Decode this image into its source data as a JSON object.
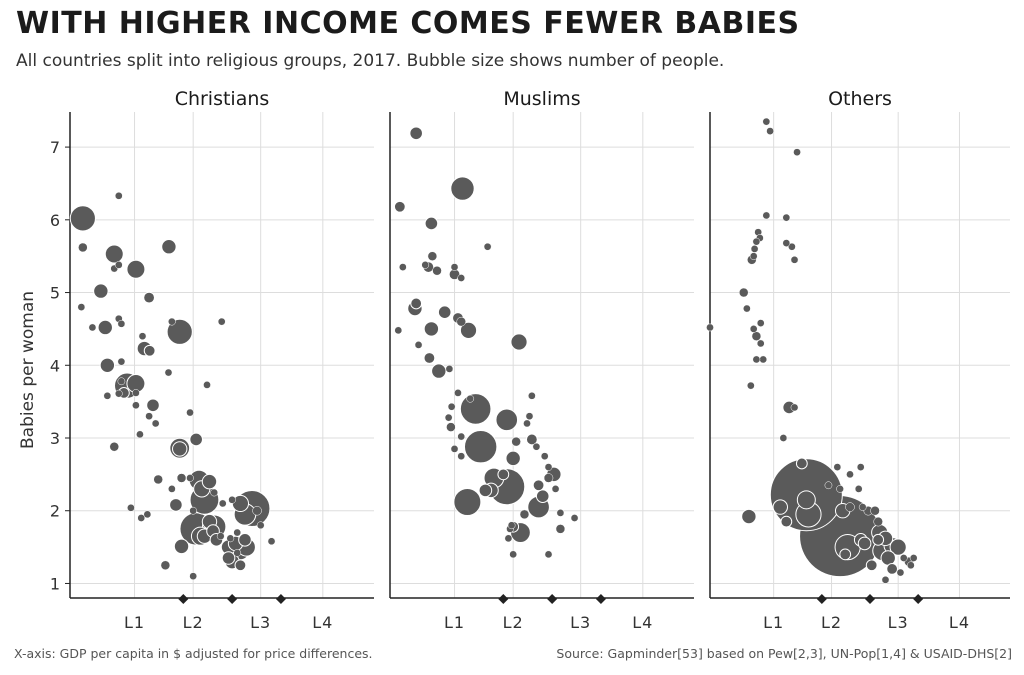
{
  "title": "WITH HIGHER INCOME COMES FEWER BABIES",
  "subtitle": "All countries split into religious groups, 2017. Bubble size shows number of people.",
  "footer_left": "X-axis: GDP per capita in $ adjusted for price differences.",
  "footer_right": "Source: Gapminder[53] based on Pew[2,3], UN-Pop[1,4] & USAID-DHS[2]",
  "colors": {
    "bubble": "#5a5a5a",
    "bubble_edge": "#ffffff",
    "grid": "#dddddd",
    "axis": "#222222",
    "marker": "#222222"
  },
  "chart_data": {
    "type": "scatter",
    "ylabel": "Babies per woman",
    "ylim": [
      0.8,
      7.4
    ],
    "yticks": [
      1,
      2,
      3,
      4,
      5,
      6,
      7
    ],
    "x_scale": "log",
    "x_domain": [
      0.4,
      30
    ],
    "level_labels": [
      "L1",
      "L2",
      "L3",
      "L4"
    ],
    "level_label_x": [
      1.0,
      2.3,
      6.0,
      14.5
    ],
    "level_boundaries": [
      2.0,
      4.0,
      8.0
    ],
    "grid": true,
    "panels": [
      {
        "name": "Christians",
        "points": [
          [
            0.48,
            6.02,
            14
          ],
          [
            0.48,
            5.62,
            5
          ],
          [
            0.47,
            4.8,
            4
          ],
          [
            0.55,
            4.52,
            4
          ],
          [
            0.8,
            6.33,
            4
          ],
          [
            0.75,
            5.53,
            10
          ],
          [
            0.75,
            5.33,
            4
          ],
          [
            0.8,
            5.38,
            4
          ],
          [
            1.02,
            5.32,
            10
          ],
          [
            0.62,
            5.02,
            8
          ],
          [
            0.66,
            4.52,
            8
          ],
          [
            0.8,
            4.64,
            4
          ],
          [
            0.83,
            4.57,
            4
          ],
          [
            0.68,
            4.0,
            8
          ],
          [
            0.83,
            4.05,
            4
          ],
          [
            0.83,
            3.78,
            4
          ],
          [
            0.9,
            3.72,
            14
          ],
          [
            1.02,
            3.75,
            10
          ],
          [
            0.8,
            3.61,
            4
          ],
          [
            0.68,
            3.58,
            4
          ],
          [
            0.86,
            3.62,
            6
          ],
          [
            1.02,
            3.62,
            4
          ],
          [
            1.02,
            3.45,
            4
          ],
          [
            1.08,
            3.05,
            4
          ],
          [
            1.23,
            4.93,
            6
          ],
          [
            1.12,
            4.4,
            4
          ],
          [
            1.15,
            4.23,
            8
          ],
          [
            1.24,
            4.2,
            6
          ],
          [
            1.3,
            3.45,
            7
          ],
          [
            1.35,
            3.2,
            4
          ],
          [
            1.23,
            3.3,
            4
          ],
          [
            1.63,
            5.63,
            8
          ],
          [
            1.9,
            4.46,
            14
          ],
          [
            1.7,
            4.6,
            4
          ],
          [
            1.62,
            3.9,
            4
          ],
          [
            0.75,
            2.88,
            5
          ],
          [
            0.95,
            2.04,
            4
          ],
          [
            1.4,
            2.43,
            5
          ],
          [
            1.7,
            2.3,
            4
          ],
          [
            1.8,
            2.08,
            7
          ],
          [
            1.9,
            2.86,
            11
          ],
          [
            1.9,
            2.85,
            8
          ],
          [
            1.95,
            2.45,
            5
          ],
          [
            1.95,
            1.51,
            8
          ],
          [
            1.2,
            1.95,
            4
          ],
          [
            1.1,
            1.9,
            4
          ],
          [
            1.55,
            1.25,
            5
          ],
          [
            2.2,
            2.45,
            4
          ],
          [
            2.4,
            2.98,
            7
          ],
          [
            2.5,
            2.42,
            11
          ],
          [
            2.6,
            2.3,
            9
          ],
          [
            2.7,
            2.15,
            16
          ],
          [
            2.3,
            2.0,
            4
          ],
          [
            2.4,
            1.75,
            18
          ],
          [
            2.55,
            1.65,
            10
          ],
          [
            2.7,
            1.65,
            8
          ],
          [
            2.9,
            1.85,
            8
          ],
          [
            3.1,
            1.78,
            13
          ],
          [
            3.05,
            1.72,
            7
          ],
          [
            3.2,
            1.6,
            7
          ],
          [
            3.4,
            1.65,
            4
          ],
          [
            3.5,
            2.1,
            4
          ],
          [
            2.2,
            3.35,
            4
          ],
          [
            2.8,
            3.73,
            4
          ],
          [
            3.45,
            4.6,
            4
          ],
          [
            2.9,
            2.4,
            8
          ],
          [
            3.1,
            2.25,
            4
          ],
          [
            2.3,
            1.1,
            4
          ],
          [
            4.0,
            2.15,
            4
          ],
          [
            4.5,
            2.1,
            9
          ],
          [
            4.8,
            1.95,
            12
          ],
          [
            5.3,
            2.03,
            20
          ],
          [
            5.7,
            2.0,
            5
          ],
          [
            6.0,
            1.8,
            4
          ],
          [
            3.8,
            1.5,
            8
          ],
          [
            4.2,
            1.55,
            8
          ],
          [
            4.5,
            1.45,
            10
          ],
          [
            4.9,
            1.5,
            10
          ],
          [
            3.8,
            1.35,
            7
          ],
          [
            4.0,
            1.3,
            8
          ],
          [
            4.5,
            1.25,
            6
          ],
          [
            4.8,
            1.6,
            7
          ],
          [
            4.3,
            1.42,
            4
          ],
          [
            3.9,
            1.62,
            4
          ],
          [
            4.3,
            1.7,
            4
          ],
          [
            7.0,
            1.58,
            4
          ]
        ]
      },
      {
        "name": "Muslims",
        "points": [
          [
            0.58,
            7.19,
            7
          ],
          [
            0.46,
            6.18,
            6
          ],
          [
            0.72,
            5.95,
            7
          ],
          [
            1.12,
            6.43,
            13
          ],
          [
            1.6,
            5.63,
            4
          ],
          [
            0.48,
            5.35,
            4
          ],
          [
            0.66,
            5.38,
            4
          ],
          [
            0.73,
            5.5,
            5
          ],
          [
            0.69,
            5.35,
            6
          ],
          [
            0.78,
            5.3,
            5
          ],
          [
            1.0,
            5.35,
            4
          ],
          [
            1.0,
            5.25,
            6
          ],
          [
            1.1,
            5.2,
            4
          ],
          [
            1.05,
            4.65,
            6
          ],
          [
            0.58,
            4.85,
            6
          ],
          [
            0.57,
            4.78,
            8
          ],
          [
            0.87,
            4.73,
            7
          ],
          [
            0.72,
            4.5,
            8
          ],
          [
            0.45,
            4.48,
            4
          ],
          [
            0.6,
            4.28,
            4
          ],
          [
            0.7,
            4.1,
            6
          ],
          [
            0.8,
            3.92,
            8
          ],
          [
            1.1,
            4.6,
            5
          ],
          [
            1.22,
            4.48,
            9
          ],
          [
            1.05,
            3.62,
            4
          ],
          [
            1.25,
            3.54,
            4
          ],
          [
            0.93,
            3.95,
            4
          ],
          [
            0.96,
            3.43,
            4
          ],
          [
            2.5,
            4.32,
            9
          ],
          [
            0.92,
            3.28,
            4
          ],
          [
            0.95,
            3.15,
            5
          ],
          [
            1.1,
            3.02,
            4
          ],
          [
            1.35,
            3.4,
            17
          ],
          [
            1.45,
            2.88,
            18
          ],
          [
            1.2,
            2.12,
            15
          ],
          [
            1.75,
            2.45,
            11
          ],
          [
            1.68,
            2.28,
            8
          ],
          [
            1.55,
            2.28,
            7
          ],
          [
            2.1,
            3.25,
            12
          ],
          [
            2.4,
            2.95,
            5
          ],
          [
            2.3,
            2.72,
            8
          ],
          [
            2.1,
            2.33,
            20
          ],
          [
            2.0,
            2.5,
            6
          ],
          [
            1.1,
            2.75,
            4
          ],
          [
            1.0,
            2.85,
            4
          ],
          [
            2.55,
            1.7,
            11
          ],
          [
            2.3,
            1.78,
            6
          ],
          [
            2.2,
            1.75,
            4
          ],
          [
            2.25,
            1.8,
            4
          ],
          [
            2.15,
            1.62,
            4
          ],
          [
            2.7,
            1.95,
            5
          ],
          [
            3.0,
            3.58,
            4
          ],
          [
            2.9,
            3.3,
            4
          ],
          [
            2.8,
            3.2,
            4
          ],
          [
            3.2,
            2.88,
            4
          ],
          [
            3.0,
            2.98,
            6
          ],
          [
            3.5,
            2.2,
            7
          ],
          [
            3.8,
            2.45,
            5
          ],
          [
            4.1,
            2.5,
            8
          ],
          [
            3.3,
            2.35,
            6
          ],
          [
            3.3,
            2.05,
            12
          ],
          [
            3.6,
            2.75,
            4
          ],
          [
            3.8,
            2.6,
            4
          ],
          [
            4.2,
            2.3,
            4
          ],
          [
            4.5,
            1.97,
            4
          ],
          [
            5.5,
            1.9,
            4
          ],
          [
            4.5,
            1.75,
            5
          ],
          [
            3.8,
            1.4,
            4
          ],
          [
            2.3,
            1.4,
            4
          ]
        ]
      },
      {
        "name": "Others",
        "points": [
          [
            0.9,
            7.35,
            4
          ],
          [
            0.95,
            7.22,
            4
          ],
          [
            1.4,
            6.93,
            4
          ],
          [
            0.9,
            6.06,
            4
          ],
          [
            0.8,
            5.83,
            4
          ],
          [
            0.82,
            5.75,
            4
          ],
          [
            0.78,
            5.7,
            4
          ],
          [
            0.75,
            5.5,
            4
          ],
          [
            0.76,
            5.6,
            4
          ],
          [
            0.73,
            5.45,
            5
          ],
          [
            1.2,
            6.03,
            4
          ],
          [
            1.3,
            5.63,
            4
          ],
          [
            1.35,
            5.45,
            4
          ],
          [
            1.2,
            5.68,
            4
          ],
          [
            0.65,
            5.0,
            5
          ],
          [
            0.68,
            4.78,
            4
          ],
          [
            0.75,
            4.5,
            4
          ],
          [
            0.78,
            4.4,
            5
          ],
          [
            0.83,
            4.58,
            4
          ],
          [
            0.83,
            4.3,
            4
          ],
          [
            0.86,
            4.08,
            4
          ],
          [
            0.78,
            4.08,
            4
          ],
          [
            0.72,
            3.72,
            4
          ],
          [
            0.4,
            4.52,
            4
          ],
          [
            1.25,
            3.42,
            7
          ],
          [
            1.35,
            3.42,
            4
          ],
          [
            1.15,
            3.0,
            4
          ],
          [
            0.7,
            1.92,
            8
          ],
          [
            1.1,
            2.05,
            8
          ],
          [
            1.6,
            2.22,
            40
          ],
          [
            1.6,
            2.15,
            10
          ],
          [
            1.65,
            1.95,
            14
          ],
          [
            1.5,
            2.65,
            6
          ],
          [
            1.2,
            1.85,
            6
          ],
          [
            2.5,
            2.6,
            4
          ],
          [
            2.2,
            2.35,
            4
          ],
          [
            2.6,
            2.3,
            4
          ],
          [
            2.7,
            2.0,
            8
          ],
          [
            3.0,
            2.05,
            5
          ],
          [
            2.6,
            1.65,
            45
          ],
          [
            2.9,
            1.5,
            14
          ],
          [
            2.8,
            1.4,
            6
          ],
          [
            3.5,
            1.6,
            7
          ],
          [
            3.7,
            1.55,
            7
          ],
          [
            4.5,
            1.6,
            6
          ],
          [
            5.0,
            1.62,
            8
          ],
          [
            5.5,
            1.52,
            9
          ],
          [
            4.8,
            1.45,
            11
          ],
          [
            5.2,
            1.35,
            8
          ],
          [
            6.0,
            1.5,
            9
          ],
          [
            4.6,
            1.7,
            9
          ],
          [
            4.5,
            1.85,
            5
          ],
          [
            3.6,
            2.05,
            4
          ],
          [
            3.9,
            2.0,
            5
          ],
          [
            4.3,
            2.0,
            5
          ],
          [
            6.5,
            1.35,
            4
          ],
          [
            7.0,
            1.3,
            5
          ],
          [
            7.5,
            1.35,
            4
          ],
          [
            5.5,
            1.2,
            6
          ],
          [
            4.1,
            1.25,
            6
          ],
          [
            3.4,
            2.3,
            4
          ],
          [
            3.0,
            2.5,
            4
          ],
          [
            3.5,
            2.6,
            4
          ],
          [
            6.2,
            1.15,
            4
          ],
          [
            7.2,
            1.25,
            4
          ],
          [
            5.0,
            1.05,
            4
          ]
        ]
      }
    ]
  }
}
